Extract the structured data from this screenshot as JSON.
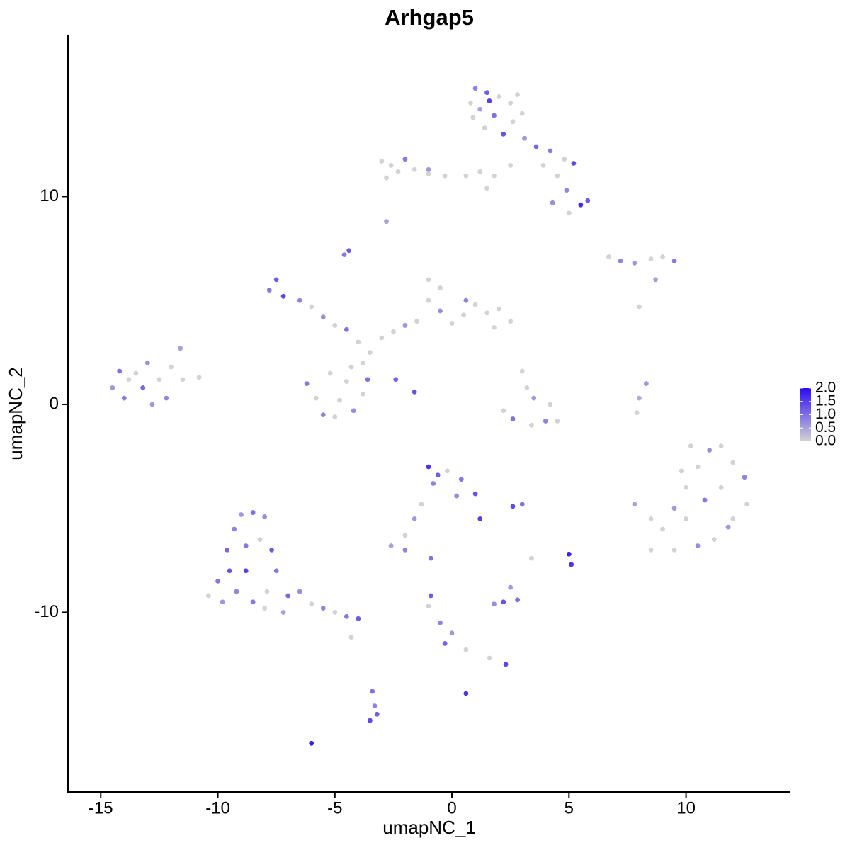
{
  "chart_data": {
    "type": "scatter",
    "title": "Arhgap5",
    "x_label": "umapNC_1",
    "y_label": "umapNC_2",
    "xlim": [
      -16.4,
      14.46
    ],
    "ylim": [
      -18.64,
      17.75
    ],
    "xticks": [
      -15,
      -10,
      -5,
      0,
      5,
      10
    ],
    "yticks": [
      -10,
      0,
      10
    ],
    "color_low": "#d3d3d3",
    "color_high": "#2b0cf5",
    "colorlim": [
      0,
      2
    ],
    "color_ticks": [
      {
        "value": 0,
        "label": "0.0"
      },
      {
        "value": 0.5,
        "label": "0.5"
      },
      {
        "value": 1,
        "label": "1.0"
      },
      {
        "value": 1.5,
        "label": "1.5"
      },
      {
        "value": 2,
        "label": "2.0"
      }
    ],
    "x": [
      1.0,
      1.5,
      2.0,
      2.5,
      1.2,
      0.9,
      1.8,
      2.6,
      3.0,
      1.4,
      2.2,
      3.1,
      3.6,
      4.2,
      4.8,
      5.2,
      3.9,
      4.5,
      4.9,
      5.5,
      5.8,
      5.0,
      4.3,
      2.5,
      1.8,
      1.2,
      0.6,
      1.5,
      1.6,
      2.8,
      0.8,
      -3.0,
      -2.6,
      -2.0,
      -2.3,
      -1.6,
      -1.0,
      -0.3,
      -2.8,
      -1.0,
      -2.8,
      -4.4,
      -4.6,
      6.7,
      7.2,
      7.8,
      8.5,
      9.0,
      9.5,
      8.7,
      8.0,
      -7.5,
      -7.8,
      -7.2,
      -6.5,
      -6.0,
      -5.5,
      -5.0,
      -4.5,
      -4.0,
      -3.5,
      -3.0,
      -2.5,
      -2.0,
      -1.5,
      -1.0,
      -1.0,
      -0.5,
      -0.5,
      0,
      0.5,
      1.0,
      1.5,
      2.0,
      2.5,
      1.8,
      0.6,
      -3.8,
      -4.3,
      -6.2,
      -5.8,
      -5.5,
      -5.0,
      -4.2,
      -3.8,
      -3.6,
      -4.5,
      -5.2,
      -4.8,
      -2.4,
      -1.6,
      3.0,
      3.2,
      3.5,
      2.2,
      2.6,
      3.4,
      4.0,
      4.5,
      4.2,
      8.3,
      8.0,
      7.9,
      -14.5,
      -14.0,
      -13.5,
      -13.2,
      -13.0,
      -12.5,
      -12.2,
      -12.0,
      -11.5,
      -11.6,
      -10.8,
      -13.8,
      -12.8,
      -14.2,
      8.5,
      9.0,
      9.5,
      10.0,
      10.5,
      11.0,
      11.5,
      12.0,
      12.5,
      12.6,
      12.0,
      11.2,
      10.5,
      9.5,
      8.5,
      10.0,
      10.8,
      11.5,
      9.8,
      11.8,
      7.8,
      10.2,
      -1.0,
      -0.6,
      -0.2,
      0.4,
      1.0,
      1.2,
      0.2,
      -0.8,
      -1.3,
      -1.6,
      -2.0,
      -2.6,
      -2.0,
      2.6,
      3.0,
      5.0,
      5.1,
      3.4,
      2.5,
      2.2,
      1.8,
      2.8,
      2.3,
      1.6,
      0.6,
      -0.3,
      0,
      -0.5,
      -0.9,
      -1.0,
      0.6,
      -0.9,
      -10.0,
      -9.6,
      -9.3,
      -9.0,
      -8.5,
      -8.0,
      -8.2,
      -7.7,
      -7.5,
      -8.8,
      -9.2,
      -9.8,
      -10.4,
      -8.5,
      -7.9,
      -7.0,
      -6.5,
      -6.0,
      -5.5,
      -5.0,
      -4.5,
      -4.0,
      -7.2,
      -8.0,
      -9.5,
      -8.8,
      -4.3,
      -3.4,
      -3.3,
      -3.2,
      -3.5,
      -6.0
    ],
    "y": [
      15.2,
      15.0,
      14.8,
      14.5,
      14.2,
      13.8,
      13.9,
      13.6,
      14.0,
      13.3,
      13.0,
      12.8,
      12.4,
      12.2,
      11.8,
      11.6,
      11.5,
      11.0,
      10.3,
      9.6,
      9.8,
      9.2,
      9.7,
      11.5,
      11.0,
      11.2,
      11.0,
      10.4,
      14.6,
      14.9,
      14.5,
      11.7,
      11.5,
      11.8,
      11.2,
      11.3,
      11.1,
      11.0,
      10.9,
      11.3,
      8.8,
      7.4,
      7.2,
      7.1,
      6.9,
      6.8,
      7.0,
      7.1,
      6.9,
      6.0,
      4.7,
      6.0,
      5.5,
      5.2,
      5.0,
      4.7,
      4.2,
      3.8,
      3.6,
      3.0,
      2.5,
      3.2,
      3.5,
      3.8,
      4.0,
      5.0,
      6.0,
      5.6,
      4.5,
      3.9,
      4.3,
      4.8,
      4.4,
      4.6,
      4.0,
      3.7,
      5.0,
      2.0,
      1.8,
      1.0,
      0.3,
      -0.5,
      -0.6,
      -0.3,
      0.5,
      1.2,
      1.1,
      1.5,
      0.2,
      1.2,
      0.6,
      1.6,
      0.8,
      0.3,
      -0.3,
      -0.7,
      -1.0,
      -0.8,
      -0.8,
      0,
      1.0,
      0.3,
      -0.4,
      0.8,
      0.3,
      1.5,
      0.8,
      2.0,
      1.2,
      0.3,
      1.8,
      1.2,
      2.7,
      1.3,
      1.2,
      0.0,
      1.6,
      -5.5,
      -6.0,
      -5.0,
      -4.0,
      -3.0,
      -2.2,
      -2.0,
      -2.8,
      -3.5,
      -4.8,
      -5.5,
      -6.5,
      -6.8,
      -7.0,
      -7.0,
      -5.5,
      -4.6,
      -4.0,
      -3.2,
      -5.9,
      -4.8,
      -2.0,
      -3.0,
      -3.4,
      -3.2,
      -3.6,
      -4.3,
      -5.5,
      -4.4,
      -3.8,
      -4.8,
      -5.5,
      -6.3,
      -6.8,
      -7.0,
      -4.9,
      -4.8,
      -7.2,
      -7.7,
      -7.4,
      -8.8,
      -9.5,
      -9.6,
      -9.4,
      -12.5,
      -12.2,
      -11.8,
      -11.5,
      -11.0,
      -10.5,
      -9.2,
      -9.7,
      -13.9,
      -7.4,
      -8.5,
      -7.0,
      -6.0,
      -5.3,
      -5.2,
      -5.4,
      -6.5,
      -7.0,
      -8.0,
      -8.0,
      -9.0,
      -9.5,
      -9.2,
      -9.5,
      -9.0,
      -9.2,
      -9.0,
      -9.6,
      -9.8,
      -10.0,
      -10.2,
      -10.3,
      -10.0,
      -9.8,
      -8.0,
      -6.8,
      -11.2,
      -13.8,
      -14.5,
      -14.9,
      -15.2,
      -16.3
    ],
    "values": [
      0.8,
      1.2,
      0,
      0,
      0.5,
      0,
      1.0,
      0,
      0,
      0,
      1.3,
      0.6,
      1.1,
      0.9,
      0,
      1.4,
      0,
      0,
      0.8,
      1.7,
      1.2,
      0,
      0.7,
      0,
      0,
      0,
      0,
      0,
      1.5,
      0,
      0,
      0,
      0,
      0.9,
      0,
      0,
      0,
      0,
      0,
      0.6,
      0.5,
      1.2,
      0.9,
      0,
      0.8,
      0.6,
      0,
      0,
      0.9,
      0.5,
      0,
      1.2,
      0.9,
      1.4,
      0.8,
      0,
      0.7,
      0,
      1.0,
      0,
      0,
      0,
      0,
      0.6,
      0,
      0,
      0,
      0,
      0.7,
      0,
      0,
      0,
      0,
      0,
      0,
      0,
      0.8,
      0,
      0,
      0.9,
      0,
      0.8,
      0,
      0.7,
      0,
      1.0,
      0,
      0,
      0,
      1.1,
      1.3,
      0,
      0,
      0.6,
      0,
      1.0,
      0,
      0.8,
      0,
      0,
      0.6,
      0.4,
      0,
      0.6,
      0.9,
      0,
      1.1,
      0.7,
      0,
      0.8,
      0,
      0,
      0.5,
      0,
      0,
      0.6,
      1.0,
      0,
      0,
      0.6,
      0,
      0,
      0.7,
      0,
      0,
      0.8,
      0,
      0,
      0,
      0.7,
      0,
      0,
      0,
      0.9,
      0,
      0,
      0.6,
      0.5,
      0,
      1.6,
      1.2,
      0,
      0.9,
      1.3,
      1.5,
      0.7,
      0.8,
      0,
      0.6,
      0,
      0.5,
      0.8,
      1.4,
      1.0,
      1.8,
      1.6,
      0,
      0.6,
      1.3,
      0.7,
      1.0,
      1.4,
      0,
      0,
      1.1,
      0.6,
      0.8,
      1.2,
      0,
      1.6,
      1.0,
      0.9,
      1.1,
      0.8,
      0.6,
      1.0,
      0.7,
      0,
      1.2,
      0.9,
      1.5,
      0.8,
      0.6,
      0,
      0.9,
      0,
      1.1,
      0.7,
      0,
      0.8,
      0,
      0.9,
      1.2,
      0.5,
      0,
      1.3,
      0.9,
      0,
      1.0,
      0.8,
      1.2,
      1.4,
      1.8
    ]
  }
}
